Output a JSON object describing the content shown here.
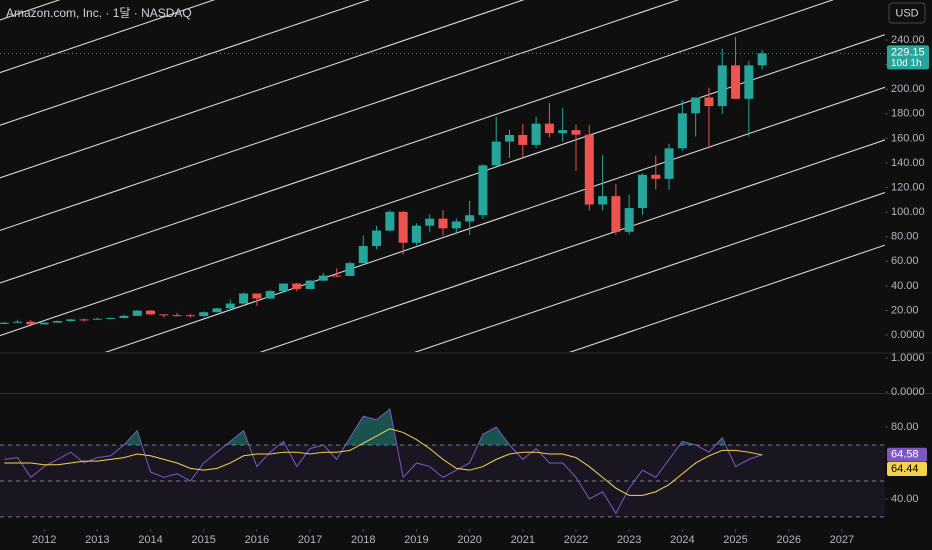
{
  "header": {
    "title": "Amazon.com, Inc. · 1달 · NASDAQ",
    "currency_button": "USD"
  },
  "chart_data": [
    {
      "type": "candlestick",
      "x": [
        2011.25,
        2011.5,
        2011.75,
        2012,
        2012.25,
        2012.5,
        2012.75,
        2013,
        2013.25,
        2013.5,
        2013.75,
        2014,
        2014.25,
        2014.5,
        2014.75,
        2015,
        2015.25,
        2015.5,
        2015.75,
        2016,
        2016.25,
        2016.5,
        2016.75,
        2017,
        2017.25,
        2017.5,
        2017.75,
        2018,
        2018.25,
        2018.5,
        2018.75,
        2019,
        2019.25,
        2019.5,
        2019.75,
        2020,
        2020.25,
        2020.5,
        2020.75,
        2021,
        2021.25,
        2021.5,
        2021.75,
        2022,
        2022.25,
        2022.5,
        2022.75,
        2023,
        2023.25,
        2023.5,
        2023.75,
        2024,
        2024.25,
        2024.5,
        2024.75,
        2025,
        2025.25,
        2025.5
      ],
      "open": [
        9.0,
        10.0,
        10.8,
        8.7,
        10.1,
        11.4,
        12.7,
        12.5,
        13.3,
        13.9,
        15.6,
        19.9,
        16.8,
        16.2,
        16.1,
        15.5,
        18.6,
        21.7,
        25.6,
        33.8,
        29.7,
        35.8,
        41.9,
        37.5,
        44.3,
        48.4,
        48.1,
        58.5,
        72.4,
        85.0,
        100.2,
        75.1,
        89.0,
        94.7,
        86.8,
        92.4,
        97.5,
        138.0,
        157.4,
        162.8,
        154.7,
        172.0,
        164.3,
        166.7,
        163.0,
        106.2,
        113.0,
        84.0,
        103.3,
        130.4,
        127.1,
        151.9,
        180.4,
        193.3,
        186.3,
        219.4,
        192.2,
        219.4
      ],
      "high": [
        10.5,
        12.4,
        12.3,
        10.3,
        11.8,
        13.2,
        13.4,
        14.2,
        14.1,
        16.6,
        20.3,
        20.4,
        17.0,
        18.1,
        17.3,
        19.3,
        22.2,
        29.0,
        34.7,
        33.8,
        36.9,
        42.0,
        42.3,
        44.7,
        50.7,
        54.3,
        59.8,
        80.9,
        88.8,
        101.7,
        101.0,
        91.0,
        98.2,
        101.8,
        94.9,
        109.3,
        139.0,
        177.6,
        167.0,
        171.6,
        177.7,
        188.7,
        185.0,
        171.4,
        170.8,
        146.6,
        123.0,
        114.0,
        131.5,
        145.9,
        155.6,
        191.1,
        191.7,
        201.2,
        233.0,
        242.5,
        223.0,
        232.0
      ],
      "low": [
        8.9,
        9.7,
        8.6,
        8.6,
        9.8,
        10.7,
        11.0,
        12.3,
        12.7,
        13.5,
        15.5,
        16.5,
        14.1,
        15.2,
        14.3,
        14.3,
        18.4,
        21.2,
        25.3,
        23.7,
        29.0,
        35.3,
        35.5,
        37.3,
        44.0,
        47.0,
        47.9,
        58.5,
        69.9,
        84.2,
        65.4,
        73.0,
        83.6,
        81.0,
        82.0,
        81.3,
        94.5,
        137.3,
        144.1,
        144.1,
        152.1,
        160.7,
        157.4,
        133.6,
        101.3,
        101.4,
        81.4,
        81.7,
        97.7,
        118.4,
        118.4,
        149.9,
        161.5,
        151.6,
        180.0,
        192.0,
        161.4,
        216.0
      ],
      "close": [
        10.0,
        10.8,
        8.7,
        10.1,
        11.4,
        12.7,
        12.5,
        13.3,
        13.9,
        15.6,
        19.9,
        16.8,
        16.2,
        16.1,
        15.5,
        18.6,
        21.7,
        25.6,
        33.8,
        29.7,
        35.8,
        41.9,
        37.5,
        44.3,
        48.4,
        48.1,
        58.5,
        72.4,
        85.0,
        100.2,
        75.1,
        89.0,
        94.7,
        86.8,
        92.4,
        97.5,
        138.0,
        157.4,
        162.8,
        154.7,
        172.0,
        164.3,
        166.7,
        163.0,
        106.2,
        113.0,
        84.0,
        103.3,
        130.4,
        127.1,
        151.9,
        180.4,
        193.3,
        186.3,
        219.4,
        192.2,
        219.4,
        229.15
      ],
      "up_color": "#26a69a",
      "down_color": "#ef5350",
      "last_price": 229.15,
      "countdown": "10d 1h",
      "xlim": [
        2011.17,
        2027.81
      ],
      "xticks": [
        2012,
        2013,
        2014,
        2015,
        2016,
        2017,
        2018,
        2019,
        2020,
        2021,
        2022,
        2023,
        2024,
        2025,
        2026,
        2027
      ],
      "ylim": [
        -13.8,
        272.6
      ],
      "yticks": [
        {
          "value": 0,
          "label": "0.0000"
        },
        {
          "value": 20,
          "label": "20.00"
        },
        {
          "value": 40,
          "label": "40.00"
        },
        {
          "value": 60,
          "label": "60.00"
        },
        {
          "value": 80,
          "label": "80.00"
        },
        {
          "value": 100,
          "label": "100.00"
        },
        {
          "value": 120,
          "label": "120.00"
        },
        {
          "value": 140,
          "label": "140.00"
        },
        {
          "value": 160,
          "label": "160.00"
        },
        {
          "value": 180,
          "label": "180.00"
        },
        {
          "value": 200,
          "label": "200.00"
        },
        {
          "value": 220,
          "label": "220.00"
        },
        {
          "value": 240,
          "label": "240.00"
        }
      ],
      "grid": false
    },
    {
      "type": "empty",
      "ylim": [
        -0.03,
        1.12
      ],
      "yticks": [
        {
          "value": 1,
          "label": "1.0000"
        },
        {
          "value": 0,
          "label": "0.0000"
        }
      ]
    },
    {
      "type": "line",
      "x": [
        2011.25,
        2011.5,
        2011.75,
        2012,
        2012.25,
        2012.5,
        2012.75,
        2013,
        2013.25,
        2013.5,
        2013.75,
        2014,
        2014.25,
        2014.5,
        2014.75,
        2015,
        2015.25,
        2015.5,
        2015.75,
        2016,
        2016.25,
        2016.5,
        2016.75,
        2017,
        2017.25,
        2017.5,
        2017.75,
        2018,
        2018.25,
        2018.5,
        2018.75,
        2019,
        2019.25,
        2019.5,
        2019.75,
        2020,
        2020.25,
        2020.5,
        2020.75,
        2021,
        2021.25,
        2021.5,
        2021.75,
        2022,
        2022.25,
        2022.5,
        2022.75,
        2023,
        2023.25,
        2023.5,
        2023.75,
        2024,
        2024.25,
        2024.5,
        2024.75,
        2025,
        2025.25,
        2025.5
      ],
      "series": [
        {
          "color": "#7e57c2",
          "values": [
            62,
            63,
            52,
            58,
            62,
            66,
            60,
            63,
            64,
            70,
            78,
            55,
            52,
            54,
            50,
            60,
            66,
            72,
            78,
            58,
            66,
            72,
            58,
            68,
            70,
            62,
            74,
            86,
            84,
            90,
            52,
            60,
            58,
            52,
            56,
            60,
            76,
            80,
            70,
            62,
            68,
            60,
            60,
            52,
            40,
            44,
            32,
            46,
            56,
            52,
            62,
            72,
            70,
            66,
            74,
            58,
            62,
            64.58
          ]
        },
        {
          "color": "#f5d34a",
          "values": [
            60,
            60,
            60,
            59,
            59,
            60,
            61,
            61,
            62,
            63,
            65,
            64,
            62,
            60,
            57,
            56,
            57,
            60,
            64,
            65,
            65,
            66,
            66,
            65,
            66,
            66,
            67,
            71,
            75,
            79,
            77,
            73,
            68,
            62,
            57,
            56,
            58,
            62,
            65,
            66,
            66,
            65,
            65,
            63,
            58,
            52,
            46,
            42,
            42,
            44,
            48,
            54,
            60,
            64,
            67,
            67,
            66,
            64.44
          ]
        }
      ],
      "levels": [
        70,
        50,
        30
      ],
      "ylim": [
        24.4,
        97.8
      ],
      "yticks": [
        {
          "value": 80,
          "label": "80.00"
        },
        {
          "value": 40,
          "label": "40.00"
        }
      ]
    }
  ]
}
